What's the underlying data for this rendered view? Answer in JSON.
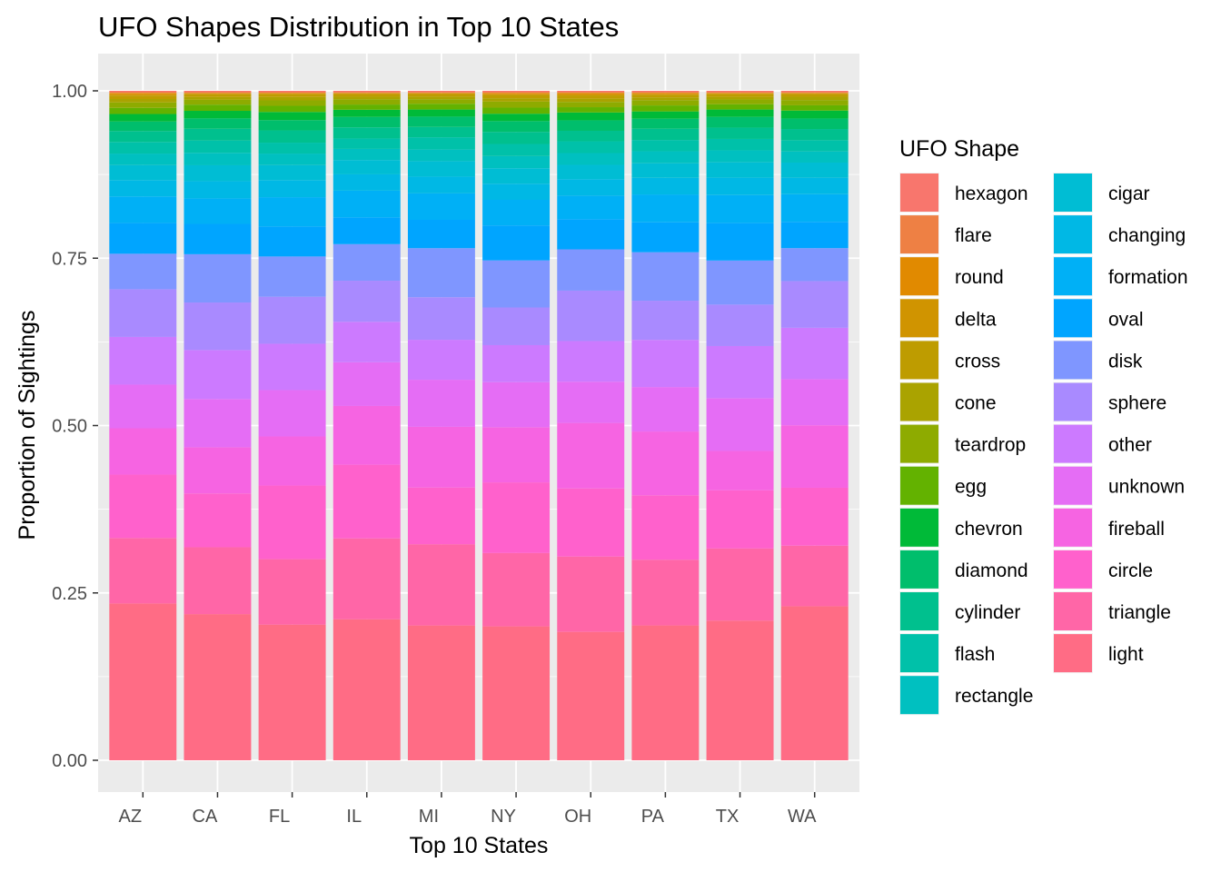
{
  "chart_data": {
    "type": "bar",
    "stacked": "proportion",
    "title": "UFO Shapes Distribution in Top 10 States",
    "xlabel": "Top 10 States",
    "ylabel": "Proportion of Sightings",
    "ylim": [
      0,
      1
    ],
    "yticks": [
      "0.00",
      "0.25",
      "0.50",
      "0.75",
      "1.00"
    ],
    "ytick_values": [
      0,
      0.25,
      0.5,
      0.75,
      1.0
    ],
    "grid": true,
    "legend_position": "right",
    "legend_title": "UFO Shape",
    "categories": [
      "AZ",
      "CA",
      "FL",
      "IL",
      "MI",
      "NY",
      "OH",
      "PA",
      "TX",
      "WA"
    ],
    "series": [
      {
        "name": "hexagon",
        "color": "#F8766D",
        "values": [
          0.002,
          0.002,
          0.002,
          0.002,
          0.002,
          0.002,
          0.002,
          0.002,
          0.002,
          0.002
        ]
      },
      {
        "name": "flare",
        "color": "#EE8044",
        "values": [
          0.001,
          0.001,
          0.001,
          0.001,
          0.001,
          0.001,
          0.001,
          0.001,
          0.001,
          0.001
        ]
      },
      {
        "name": "round",
        "color": "#E18A00",
        "values": [
          0.002,
          0.001,
          0.001,
          0.001,
          0.001,
          0.002,
          0.002,
          0.002,
          0.001,
          0.001
        ]
      },
      {
        "name": "delta",
        "color": "#D09400",
        "values": [
          0.002,
          0.001,
          0.001,
          0.001,
          0.001,
          0.001,
          0.002,
          0.001,
          0.001,
          0.001
        ]
      },
      {
        "name": "cross",
        "color": "#BE9C00",
        "values": [
          0.005,
          0.004,
          0.004,
          0.004,
          0.004,
          0.005,
          0.005,
          0.004,
          0.004,
          0.004
        ]
      },
      {
        "name": "cone",
        "color": "#AAA300",
        "values": [
          0.005,
          0.004,
          0.005,
          0.004,
          0.004,
          0.005,
          0.005,
          0.004,
          0.004,
          0.005
        ]
      },
      {
        "name": "teardrop",
        "color": "#8EAB00",
        "values": [
          0.008,
          0.007,
          0.008,
          0.008,
          0.007,
          0.009,
          0.008,
          0.008,
          0.007,
          0.008
        ]
      },
      {
        "name": "egg",
        "color": "#63B200",
        "values": [
          0.009,
          0.009,
          0.009,
          0.008,
          0.009,
          0.009,
          0.008,
          0.009,
          0.008,
          0.008
        ]
      },
      {
        "name": "chevron",
        "color": "#00BA38",
        "values": [
          0.011,
          0.011,
          0.012,
          0.011,
          0.011,
          0.011,
          0.012,
          0.011,
          0.011,
          0.012
        ]
      },
      {
        "name": "diamond",
        "color": "#00BE6C",
        "values": [
          0.014,
          0.015,
          0.015,
          0.016,
          0.016,
          0.016,
          0.016,
          0.015,
          0.016,
          0.016
        ]
      },
      {
        "name": "cylinder",
        "color": "#00C08E",
        "values": [
          0.016,
          0.017,
          0.018,
          0.017,
          0.016,
          0.018,
          0.016,
          0.017,
          0.017,
          0.017
        ]
      },
      {
        "name": "flash",
        "color": "#00C1A9",
        "values": [
          0.017,
          0.018,
          0.016,
          0.016,
          0.019,
          0.018,
          0.018,
          0.017,
          0.017,
          0.017
        ]
      },
      {
        "name": "rectangle",
        "color": "#00C0C0",
        "values": [
          0.017,
          0.018,
          0.017,
          0.017,
          0.018,
          0.018,
          0.018,
          0.018,
          0.018,
          0.017
        ]
      },
      {
        "name": "cigar",
        "color": "#00BDD4",
        "values": [
          0.022,
          0.023,
          0.022,
          0.022,
          0.024,
          0.023,
          0.022,
          0.022,
          0.023,
          0.023
        ]
      },
      {
        "name": "changing",
        "color": "#00B8E5",
        "values": [
          0.024,
          0.025,
          0.025,
          0.025,
          0.026,
          0.024,
          0.025,
          0.025,
          0.026,
          0.025
        ]
      },
      {
        "name": "formation",
        "color": "#00B0F6",
        "values": [
          0.039,
          0.037,
          0.043,
          0.041,
          0.041,
          0.038,
          0.036,
          0.042,
          0.042,
          0.042
        ]
      },
      {
        "name": "oval",
        "color": "#00A5FF",
        "values": [
          0.045,
          0.044,
          0.044,
          0.041,
          0.044,
          0.052,
          0.046,
          0.045,
          0.056,
          0.04
        ]
      },
      {
        "name": "disk",
        "color": "#7F96FF",
        "values": [
          0.052,
          0.07,
          0.059,
          0.056,
          0.076,
          0.07,
          0.063,
          0.073,
          0.066,
          0.05
        ]
      },
      {
        "name": "sphere",
        "color": "#A98AFF",
        "values": [
          0.07,
          0.069,
          0.069,
          0.063,
          0.066,
          0.056,
          0.077,
          0.059,
          0.062,
          0.071
        ]
      },
      {
        "name": "other",
        "color": "#CC7AFF",
        "values": [
          0.07,
          0.071,
          0.068,
          0.062,
          0.062,
          0.055,
          0.062,
          0.071,
          0.078,
          0.078
        ]
      },
      {
        "name": "unknown",
        "color": "#E56DF5",
        "values": [
          0.064,
          0.07,
          0.068,
          0.067,
          0.073,
          0.067,
          0.063,
          0.067,
          0.079,
          0.07
        ]
      },
      {
        "name": "fireball",
        "color": "#F664E2",
        "values": [
          0.068,
          0.067,
          0.072,
          0.09,
          0.094,
          0.082,
          0.1,
          0.096,
          0.059,
          0.095
        ]
      },
      {
        "name": "circle",
        "color": "#FF61CC",
        "values": [
          0.093,
          0.078,
          0.108,
          0.113,
          0.088,
          0.105,
          0.104,
          0.097,
          0.087,
          0.088
        ]
      },
      {
        "name": "triangle",
        "color": "#FF66A7",
        "values": [
          0.096,
          0.097,
          0.096,
          0.124,
          0.126,
          0.109,
          0.115,
          0.099,
          0.108,
          0.092
        ]
      },
      {
        "name": "light",
        "color": "#FF6C85",
        "values": [
          0.23,
          0.212,
          0.199,
          0.216,
          0.209,
          0.199,
          0.196,
          0.203,
          0.209,
          0.234
        ]
      }
    ]
  }
}
